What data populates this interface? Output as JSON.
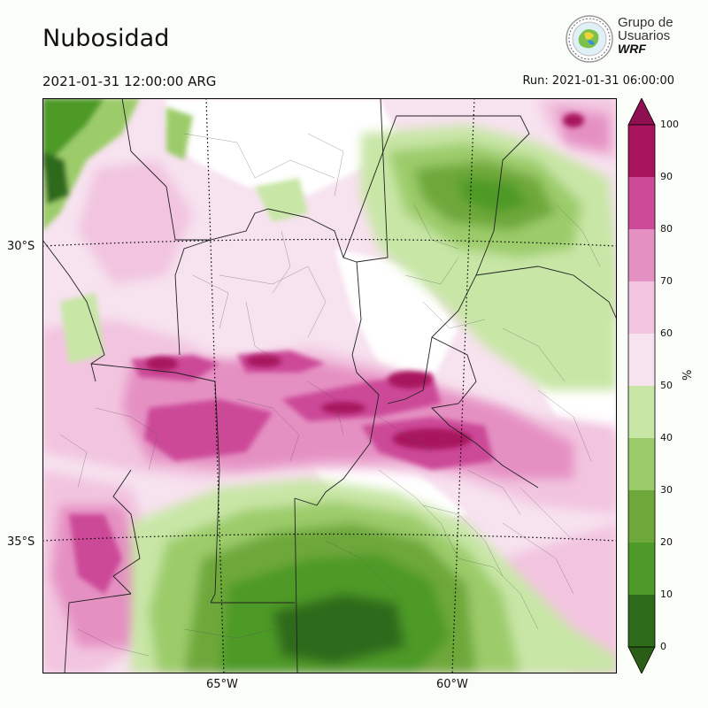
{
  "title": "Nubosidad",
  "valid_time": "2021-01-31 12:00:00 ARG",
  "run_time": "Run: 2021-01-31 06:00:00",
  "logo": {
    "line1": "Grupo de",
    "line2": "Usuarios",
    "line3": "WRF"
  },
  "map": {
    "lat_labels": [
      "30°S",
      "35°S"
    ],
    "lon_labels": [
      "65°W",
      "60°W"
    ]
  },
  "colorbar": {
    "unit": "%",
    "ticks": [
      "0",
      "10",
      "20",
      "30",
      "40",
      "50",
      "60",
      "70",
      "80",
      "90",
      "100"
    ],
    "colors": [
      "#2e6b1a",
      "#4e9a28",
      "#6ea83a",
      "#9ccc6a",
      "#c8e6a6",
      "#ffffff",
      "#f7e2ef",
      "#f2c4df",
      "#e590c2",
      "#cc4a98",
      "#a8145e"
    ],
    "under_color": "#2a5e16",
    "over_color": "#8e0f52"
  },
  "legend_colors": {
    "dark_green": "#2e6b1a",
    "green": "#4e9a28",
    "light_green": "#9ccc6a",
    "pale_green": "#c8e6a6",
    "white": "#ffffff",
    "pale_pink": "#f7e2ef",
    "light_pink": "#f2c4df",
    "pink": "#e590c2",
    "magenta": "#cc4a98",
    "dark_magenta": "#a8145e"
  }
}
